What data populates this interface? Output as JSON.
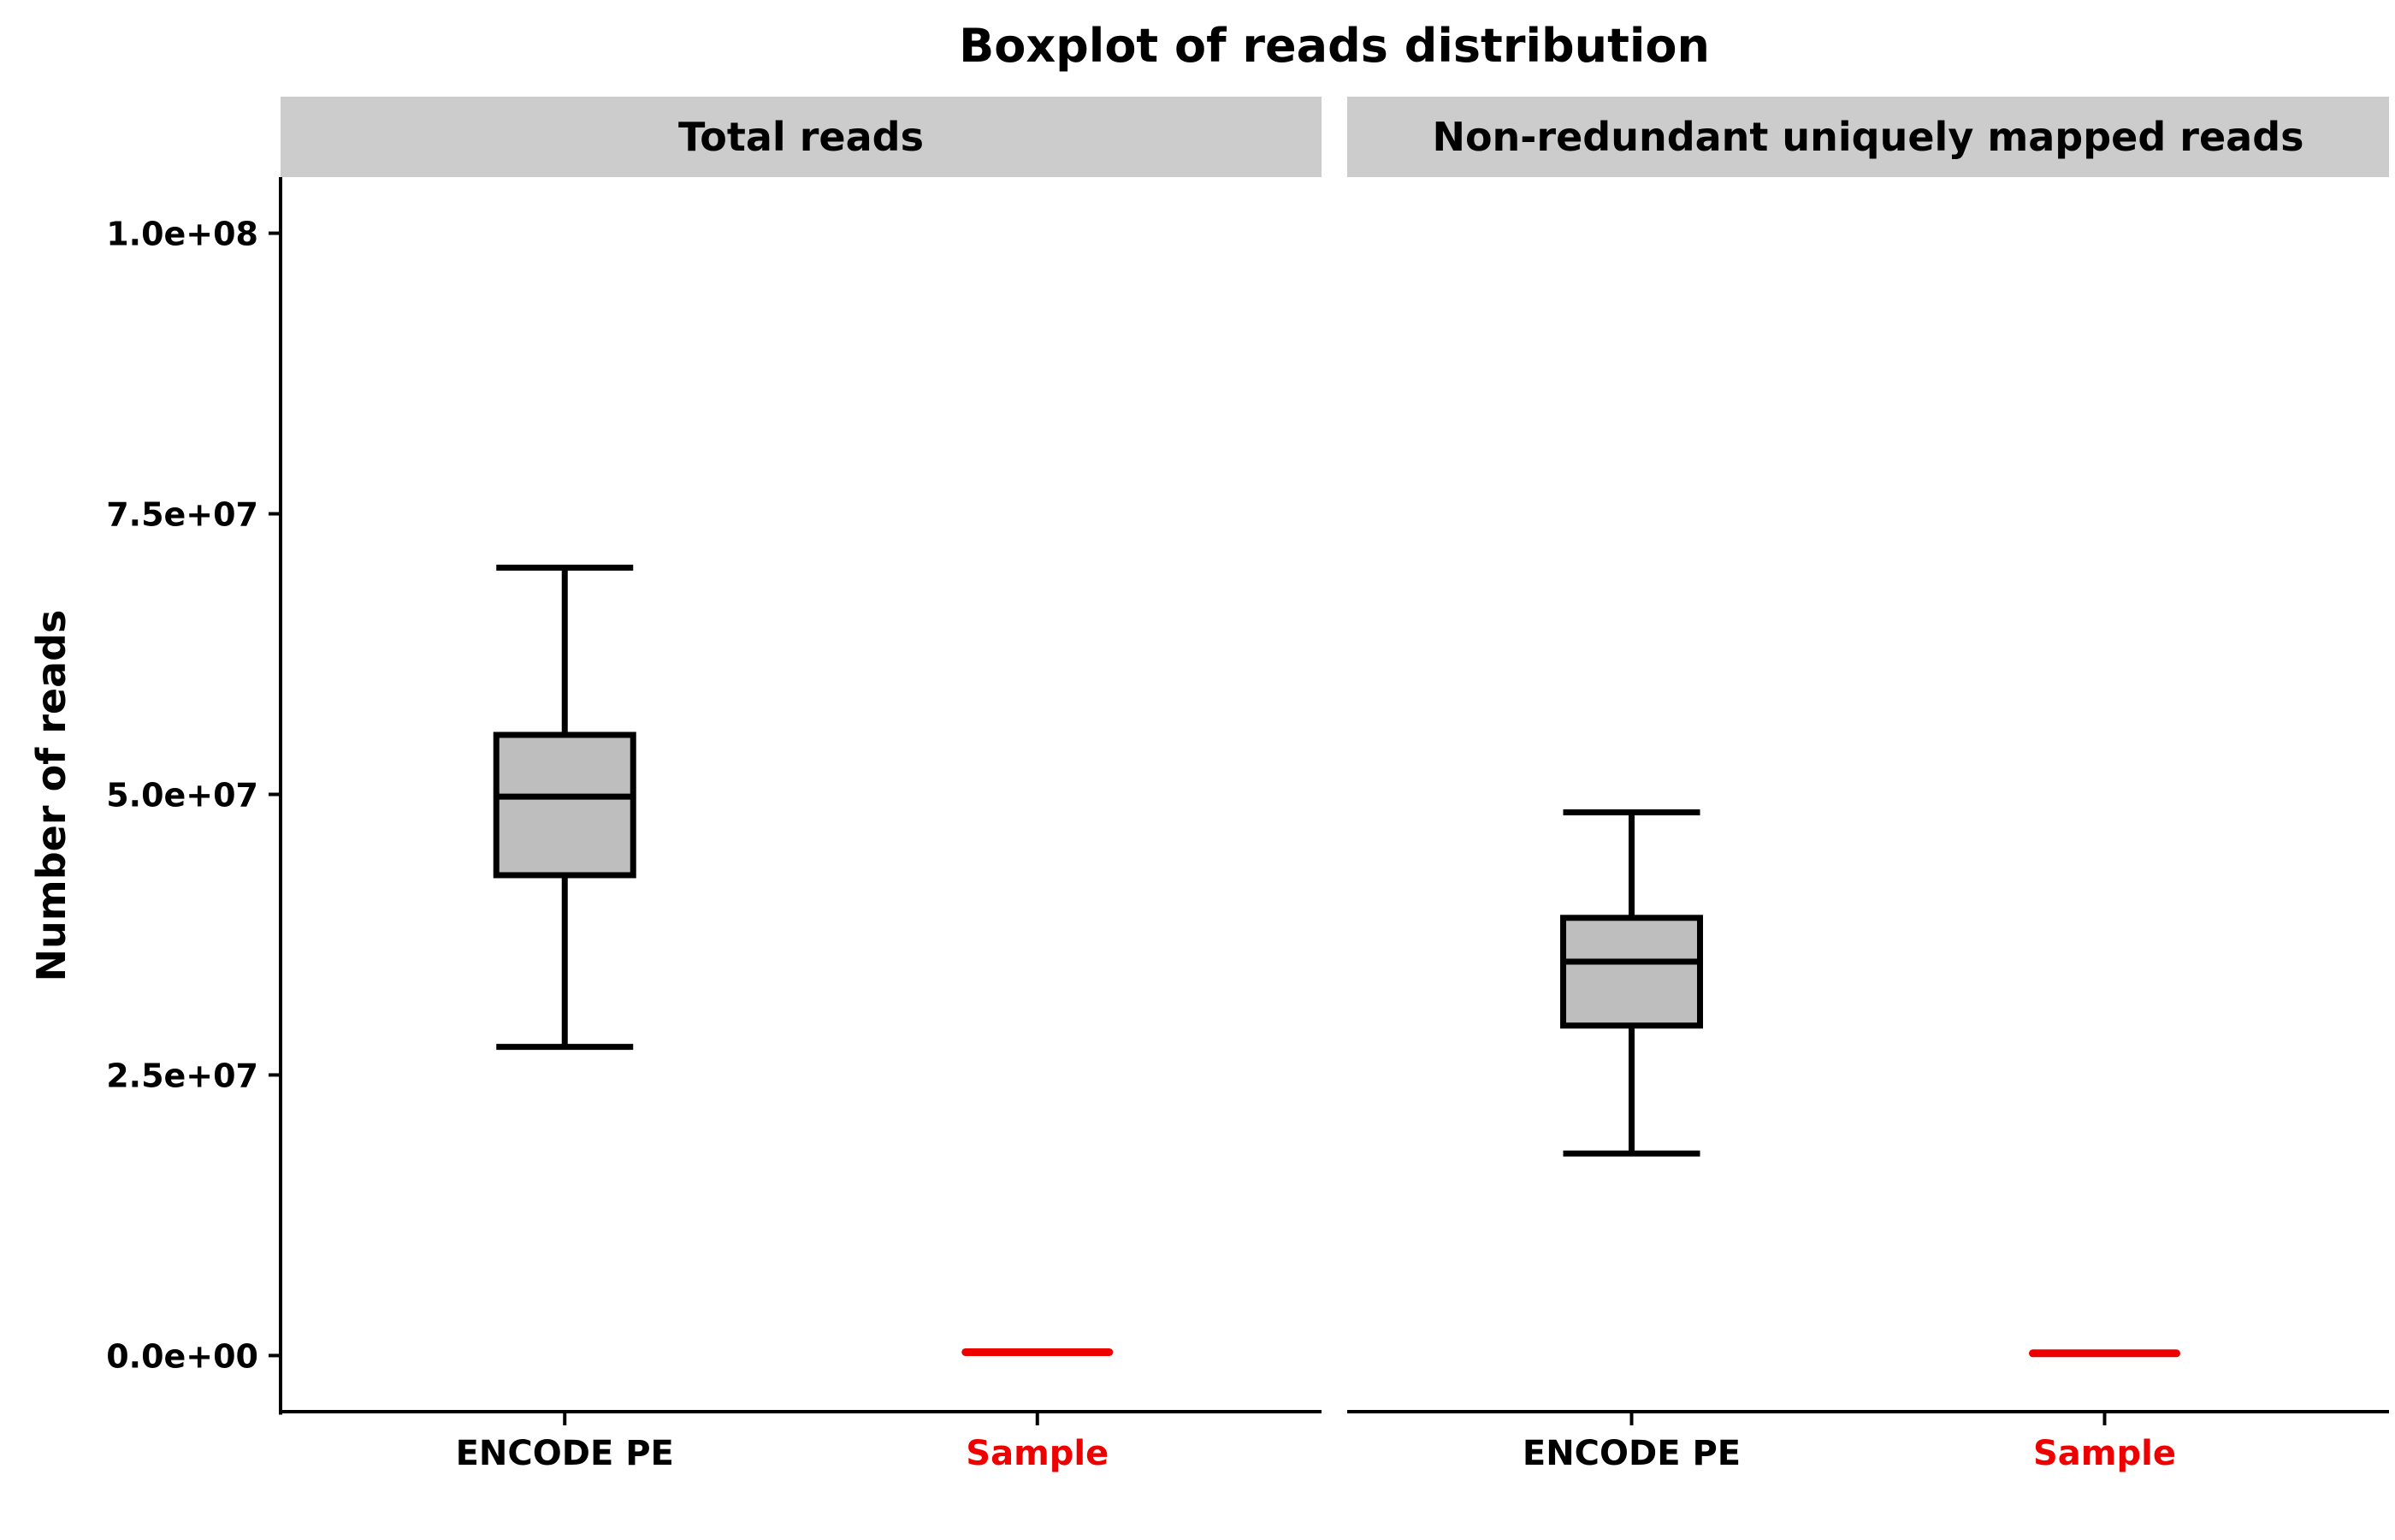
{
  "chart_data": {
    "type": "boxplot",
    "title": "Boxplot of reads distribution",
    "ylabel": "Number of reads",
    "ylim": [
      -5000000,
      105000000
    ],
    "y_ticks": [
      {
        "value": 0,
        "label": "0.0e+00"
      },
      {
        "value": 25000000,
        "label": "2.5e+07"
      },
      {
        "value": 50000000,
        "label": "5.0e+07"
      },
      {
        "value": 75000000,
        "label": "7.5e+07"
      },
      {
        "value": 100000000,
        "label": "1.0e+08"
      }
    ],
    "categories": [
      "ENCODE PE",
      "Sample"
    ],
    "category_colors": [
      "#000000",
      "#ee0000"
    ],
    "box_fill": "#bebebe",
    "sample_color": "#ee0000",
    "strip_color": "#cccccc",
    "facets": [
      {
        "label": "Total reads",
        "box": {
          "min": 27500000,
          "q1": 42800000,
          "median": 49800000,
          "q3": 55300000,
          "max": 70200000
        },
        "sample_value": 300000
      },
      {
        "label": "Non-redundant uniquely mapped reads",
        "box": {
          "min": 18000000,
          "q1": 29400000,
          "median": 35100000,
          "q3": 39000000,
          "max": 48400000
        },
        "sample_value": 200000
      }
    ]
  }
}
